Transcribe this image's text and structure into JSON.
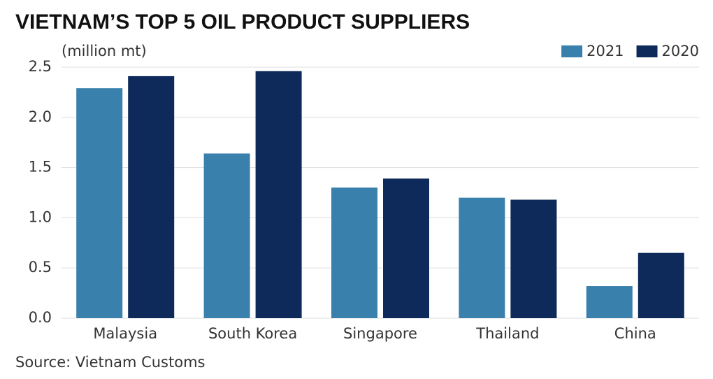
{
  "chart_data": {
    "type": "bar",
    "title": "VIETNAM’S TOP 5 OIL PRODUCT SUPPLIERS",
    "y_axis_label": "(million mt)",
    "source": "Source: Vietnam Customs",
    "categories": [
      "Malaysia",
      "South Korea",
      "Singapore",
      "Thailand",
      "China"
    ],
    "series": [
      {
        "name": "2021",
        "color": "#3a80ad",
        "values": [
          2.29,
          1.64,
          1.3,
          1.2,
          0.32
        ]
      },
      {
        "name": "2020",
        "color": "#0d2a5a",
        "values": [
          2.41,
          2.46,
          1.39,
          1.18,
          0.65
        ]
      }
    ],
    "ylim": [
      0,
      2.5
    ],
    "yticks": [
      {
        "value": 0,
        "label": "0.0"
      },
      0.5,
      {
        "value": 1,
        "label": "1.0"
      },
      1.5,
      {
        "value": 2,
        "label": "2.0"
      },
      2.5
    ],
    "grid": true,
    "legend": "top-right"
  }
}
